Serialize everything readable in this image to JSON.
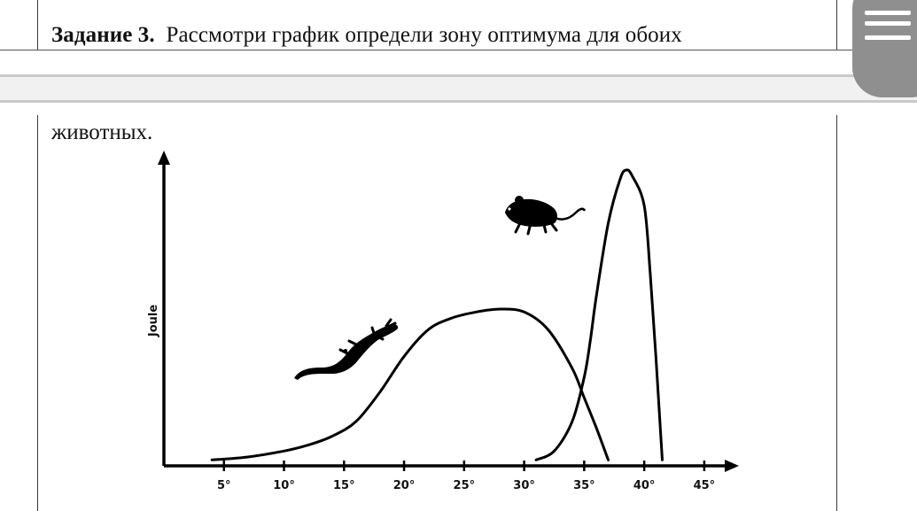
{
  "task": {
    "label": "Задание 3.",
    "text": "Рассмотри график определи  зону оптимума для обоих",
    "continuation": "животных."
  },
  "menu": {
    "icon": "hamburger-menu-icon",
    "color": "#8f8f8f"
  },
  "chart_data": {
    "type": "line",
    "ylabel": "Joule",
    "xlabel": "",
    "x_ticks": [
      "5°",
      "10°",
      "15°",
      "20°",
      "25°",
      "30°",
      "35°",
      "40°",
      "45°"
    ],
    "x_tick_values": [
      5,
      10,
      15,
      20,
      25,
      30,
      35,
      40,
      45
    ],
    "xlim": [
      0,
      47
    ],
    "ylim": [
      0,
      100
    ],
    "grid": false,
    "series": [
      {
        "icon": "lizard-icon",
        "x": [
          4,
          7,
          10,
          12,
          14,
          16,
          18,
          20,
          22,
          24,
          26,
          28,
          30,
          32,
          34,
          35,
          36,
          37
        ],
        "y": [
          2,
          3,
          5,
          7,
          10,
          15,
          25,
          37,
          46,
          50,
          52,
          53,
          52,
          46,
          33,
          23,
          13,
          2
        ]
      },
      {
        "icon": "mouse-icon",
        "x": [
          31,
          32.5,
          34,
          35,
          35.5,
          36,
          37,
          38,
          38.5,
          39,
          40,
          40.5,
          41,
          41.5
        ],
        "y": [
          2,
          5,
          15,
          30,
          42,
          57,
          82,
          97,
          100,
          98,
          88,
          65,
          35,
          2
        ]
      }
    ]
  }
}
